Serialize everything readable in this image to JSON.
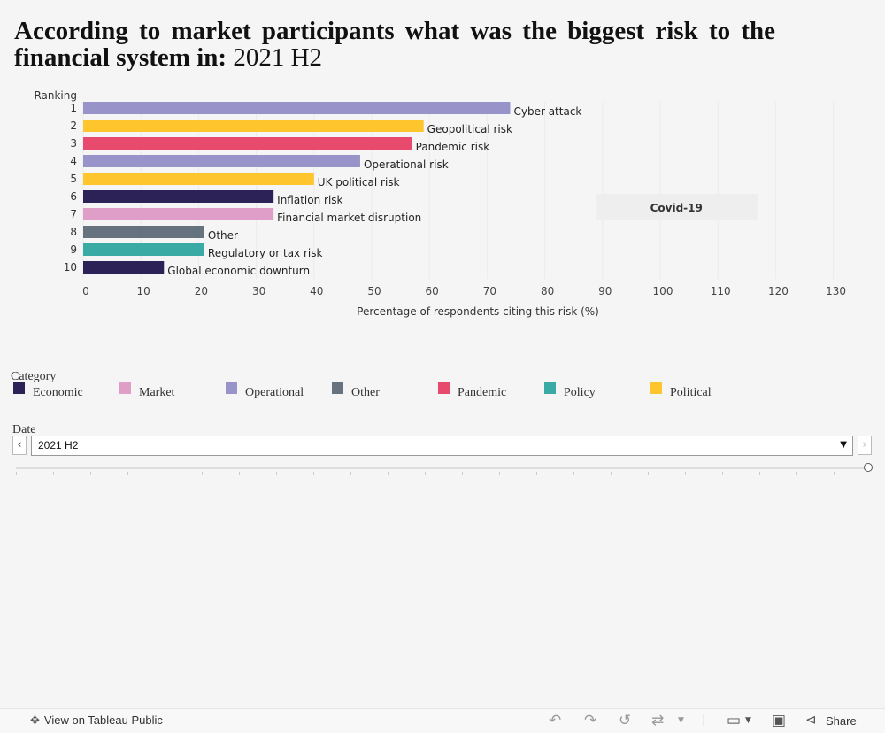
{
  "title": {
    "main": "According to market participants what was the biggest risk to the financial system in:",
    "date": "2021 H2"
  },
  "chart_data": {
    "type": "bar",
    "orientation": "horizontal",
    "y_axis_title": "Ranking",
    "rankings": [
      1,
      2,
      3,
      4,
      5,
      6,
      7,
      8,
      9,
      10
    ],
    "categories": [
      "Cyber attack",
      "Geopolitical risk",
      "Pandemic risk",
      "Operational risk",
      "UK political risk",
      "Inflation risk",
      "Financial market disruption",
      "Other",
      "Regulatory or tax risk",
      "Global economic downturn"
    ],
    "values": [
      74,
      59,
      57,
      48,
      40,
      33,
      33,
      21,
      21,
      14
    ],
    "bar_categories": [
      "Operational",
      "Political",
      "Pandemic",
      "Operational",
      "Political",
      "Economic",
      "Market",
      "Other",
      "Policy",
      "Economic"
    ],
    "xlabel": "Percentage of respondents citing this risk (%)",
    "xlim": [
      0,
      130
    ],
    "xticks": [
      0,
      10,
      20,
      30,
      40,
      50,
      60,
      70,
      80,
      90,
      100,
      110,
      120,
      130
    ],
    "annotation": "Covid-19",
    "grid": true
  },
  "legend": {
    "title": "Category",
    "items": [
      {
        "label": "Economic",
        "color": "#2d2257"
      },
      {
        "label": "Market",
        "color": "#df9ec8"
      },
      {
        "label": "Operational",
        "color": "#9893c9"
      },
      {
        "label": "Other",
        "color": "#66737f"
      },
      {
        "label": "Pandemic",
        "color": "#e84a6d"
      },
      {
        "label": "Policy",
        "color": "#3aaaa4"
      },
      {
        "label": "Political",
        "color": "#fec52c"
      }
    ]
  },
  "filter": {
    "label": "Date",
    "value": "2021 H2"
  },
  "toolbar": {
    "view_on": "View on Tableau Public",
    "share": "Share"
  }
}
